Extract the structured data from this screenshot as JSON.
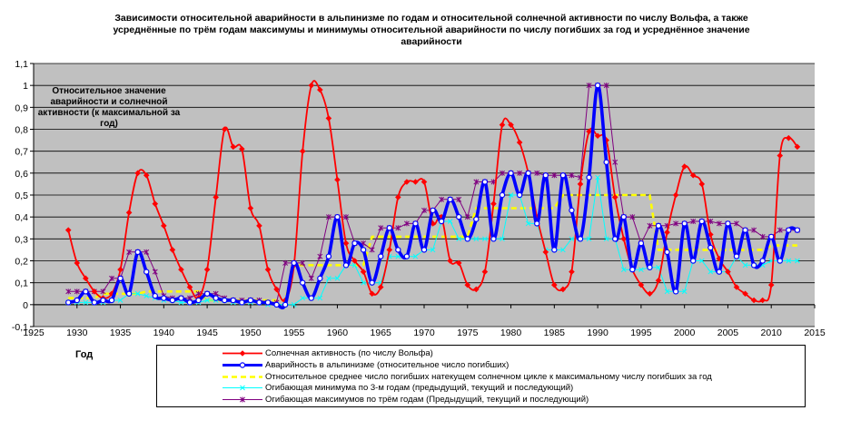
{
  "chart_data": {
    "type": "line",
    "title": "Зависимости относительной аварийности в альпинизме по годам и относительной солнечной активности по числу Вольфа, а также усреднённые по трём годам максимумы и минимумы относительной аварийности по числу погибших за год и усреднённое значение аварийности",
    "xlabel": "Год",
    "ylabel": "Относительное значение аварийности и солнечной активности (к максимальной за год)",
    "xlim": [
      1925,
      2015
    ],
    "ylim": [
      -0.1,
      1.1
    ],
    "x_ticks": [
      "1925",
      "1930",
      "1935",
      "1940",
      "1945",
      "1950",
      "1955",
      "1960",
      "1965",
      "1970",
      "1975",
      "1980",
      "1985",
      "1990",
      "1995",
      "2000",
      "2005",
      "2010",
      "2015"
    ],
    "y_ticks": [
      "-0,1",
      "0",
      "0,1",
      "0,2",
      "0,3",
      "0,4",
      "0,5",
      "0,6",
      "0,7",
      "0,8",
      "0,9",
      "1",
      "1,1"
    ],
    "grid": "horizontal",
    "legend_position": "bottom",
    "series": [
      {
        "name": "Солнечная активность (по числу Вольфа)",
        "color": "#ff0000",
        "marker": "diamond",
        "x": [
          1929,
          1930,
          1931,
          1932,
          1933,
          1934,
          1935,
          1936,
          1937,
          1938,
          1939,
          1940,
          1941,
          1942,
          1943,
          1944,
          1945,
          1946,
          1947,
          1948,
          1949,
          1950,
          1951,
          1952,
          1953,
          1954,
          1955,
          1956,
          1957,
          1958,
          1959,
          1960,
          1961,
          1962,
          1963,
          1964,
          1965,
          1966,
          1967,
          1968,
          1969,
          1970,
          1971,
          1972,
          1973,
          1974,
          1975,
          1976,
          1977,
          1978,
          1979,
          1980,
          1981,
          1982,
          1983,
          1984,
          1985,
          1986,
          1987,
          1988,
          1989,
          1990,
          1991,
          1992,
          1993,
          1994,
          1995,
          1996,
          1997,
          1998,
          1999,
          2000,
          2001,
          2002,
          2003,
          2004,
          2005,
          2006,
          2007,
          2008,
          2009,
          2010,
          2011,
          2012,
          2013
        ],
        "y": [
          0.34,
          0.19,
          0.12,
          0.06,
          0.03,
          0.05,
          0.16,
          0.42,
          0.6,
          0.59,
          0.46,
          0.36,
          0.25,
          0.16,
          0.08,
          0.03,
          0.16,
          0.49,
          0.8,
          0.72,
          0.71,
          0.44,
          0.36,
          0.16,
          0.07,
          0.02,
          0.18,
          0.7,
          1.0,
          0.98,
          0.85,
          0.57,
          0.28,
          0.2,
          0.15,
          0.05,
          0.08,
          0.25,
          0.49,
          0.56,
          0.56,
          0.56,
          0.37,
          0.4,
          0.2,
          0.19,
          0.09,
          0.07,
          0.15,
          0.46,
          0.82,
          0.82,
          0.74,
          0.6,
          0.4,
          0.24,
          0.09,
          0.07,
          0.15,
          0.55,
          0.79,
          0.77,
          0.75,
          0.49,
          0.3,
          0.16,
          0.09,
          0.05,
          0.11,
          0.33,
          0.5,
          0.63,
          0.59,
          0.55,
          0.32,
          0.21,
          0.15,
          0.08,
          0.05,
          0.02,
          0.02,
          0.09,
          0.68,
          0.76,
          0.72
        ]
      },
      {
        "name": "Аварийность в альпинизме (относительное число погибших)",
        "color": "#0000ff",
        "marker": "circle",
        "x": [
          1929,
          1930,
          1931,
          1932,
          1933,
          1934,
          1935,
          1936,
          1937,
          1938,
          1939,
          1940,
          1941,
          1942,
          1943,
          1944,
          1945,
          1946,
          1947,
          1948,
          1949,
          1950,
          1951,
          1952,
          1953,
          1954,
          1955,
          1956,
          1957,
          1958,
          1959,
          1960,
          1961,
          1962,
          1963,
          1964,
          1965,
          1966,
          1967,
          1968,
          1969,
          1970,
          1971,
          1972,
          1973,
          1974,
          1975,
          1976,
          1977,
          1978,
          1979,
          1980,
          1981,
          1982,
          1983,
          1984,
          1985,
          1986,
          1987,
          1988,
          1989,
          1990,
          1991,
          1992,
          1993,
          1994,
          1995,
          1996,
          1997,
          1998,
          1999,
          2000,
          2001,
          2002,
          2003,
          2004,
          2005,
          2006,
          2007,
          2008,
          2009,
          2010,
          2011,
          2012,
          2013
        ],
        "y": [
          0.01,
          0.02,
          0.06,
          0.01,
          0.02,
          0.02,
          0.12,
          0.05,
          0.24,
          0.15,
          0.04,
          0.03,
          0.02,
          0.03,
          0.01,
          0.02,
          0.05,
          0.03,
          0.02,
          0.02,
          0.01,
          0.02,
          0.01,
          0.01,
          0.0,
          0.0,
          0.19,
          0.1,
          0.03,
          0.12,
          0.22,
          0.4,
          0.18,
          0.28,
          0.25,
          0.1,
          0.22,
          0.35,
          0.25,
          0.22,
          0.37,
          0.25,
          0.43,
          0.38,
          0.48,
          0.4,
          0.3,
          0.39,
          0.56,
          0.3,
          0.5,
          0.6,
          0.5,
          0.6,
          0.37,
          0.59,
          0.25,
          0.59,
          0.43,
          0.3,
          0.58,
          1.0,
          0.65,
          0.3,
          0.4,
          0.16,
          0.28,
          0.17,
          0.36,
          0.24,
          0.06,
          0.37,
          0.2,
          0.38,
          0.26,
          0.15,
          0.37,
          0.22,
          0.34,
          0.18,
          0.2,
          0.31,
          0.2,
          0.34,
          0.34
        ]
      },
      {
        "name": "Относительное среднее число погибших натекущем солнечном цикле к максимальному числу погибших за год",
        "color": "#ffff00",
        "marker": "dash",
        "x": [
          1929,
          1930,
          1931,
          1932,
          1933,
          1934,
          1935,
          1936,
          1937,
          1938,
          1939,
          1940,
          1941,
          1942,
          1943,
          1944,
          1945,
          1946,
          1947,
          1948,
          1949,
          1950,
          1951,
          1952,
          1953,
          1954,
          1955,
          1956,
          1957,
          1958,
          1959,
          1960,
          1961,
          1962,
          1963,
          1964,
          1965,
          1966,
          1967,
          1968,
          1969,
          1970,
          1971,
          1972,
          1973,
          1974,
          1975,
          1976,
          1977,
          1978,
          1979,
          1980,
          1981,
          1982,
          1983,
          1984,
          1985,
          1986,
          1987,
          1988,
          1989,
          1990,
          1991,
          1992,
          1993,
          1994,
          1995,
          1996,
          1997,
          1998,
          1999,
          2000,
          2001,
          2002,
          2003,
          2004,
          2005,
          2006,
          2007,
          2008,
          2009,
          2010,
          2011,
          2012,
          2013
        ],
        "y": [
          0.03,
          0.03,
          0.03,
          0.03,
          0.05,
          0.05,
          0.05,
          0.05,
          0.05,
          0.06,
          0.06,
          0.06,
          0.06,
          0.06,
          0.06,
          0.06,
          0.02,
          0.02,
          0.02,
          0.02,
          0.02,
          0.02,
          0.02,
          0.02,
          0.02,
          0.02,
          0.18,
          0.18,
          0.18,
          0.18,
          0.18,
          0.18,
          0.18,
          0.18,
          0.18,
          0.31,
          0.31,
          0.31,
          0.31,
          0.31,
          0.31,
          0.31,
          0.31,
          0.31,
          0.31,
          0.31,
          0.31,
          0.44,
          0.44,
          0.44,
          0.44,
          0.44,
          0.44,
          0.44,
          0.44,
          0.44,
          0.44,
          0.5,
          0.5,
          0.5,
          0.5,
          0.5,
          0.5,
          0.5,
          0.5,
          0.5,
          0.5,
          0.5,
          0.25,
          0.25,
          0.25,
          0.25,
          0.25,
          0.25,
          0.25,
          0.25,
          0.25,
          0.25,
          0.25,
          0.25,
          0.25,
          0.27,
          0.27,
          0.27,
          0.27
        ]
      },
      {
        "name": "Огибающая минимума по 3-м годам (предыдущий, текущий и последующий)",
        "color": "#00ffff",
        "marker": "x",
        "x": [
          1929,
          1930,
          1931,
          1932,
          1933,
          1934,
          1935,
          1936,
          1937,
          1938,
          1939,
          1940,
          1941,
          1942,
          1943,
          1944,
          1945,
          1946,
          1947,
          1948,
          1949,
          1950,
          1951,
          1952,
          1953,
          1954,
          1955,
          1956,
          1957,
          1958,
          1959,
          1960,
          1961,
          1962,
          1963,
          1964,
          1965,
          1966,
          1967,
          1968,
          1969,
          1970,
          1971,
          1972,
          1973,
          1974,
          1975,
          1976,
          1977,
          1978,
          1979,
          1980,
          1981,
          1982,
          1983,
          1984,
          1985,
          1986,
          1987,
          1988,
          1989,
          1990,
          1991,
          1992,
          1993,
          1994,
          1995,
          1996,
          1997,
          1998,
          1999,
          2000,
          2001,
          2002,
          2003,
          2004,
          2005,
          2006,
          2007,
          2008,
          2009,
          2010,
          2011,
          2012,
          2013
        ],
        "y": [
          0.01,
          0.01,
          0.01,
          0.01,
          0.01,
          0.02,
          0.02,
          0.05,
          0.05,
          0.04,
          0.03,
          0.02,
          0.02,
          0.01,
          0.01,
          0.01,
          0.02,
          0.02,
          0.02,
          0.01,
          0.01,
          0.01,
          0.01,
          0.0,
          0.0,
          0.0,
          0.0,
          0.03,
          0.03,
          0.03,
          0.12,
          0.12,
          0.18,
          0.18,
          0.1,
          0.1,
          0.1,
          0.22,
          0.22,
          0.22,
          0.22,
          0.25,
          0.25,
          0.38,
          0.38,
          0.3,
          0.3,
          0.3,
          0.3,
          0.3,
          0.3,
          0.5,
          0.5,
          0.37,
          0.37,
          0.25,
          0.25,
          0.25,
          0.3,
          0.3,
          0.3,
          0.58,
          0.3,
          0.3,
          0.16,
          0.16,
          0.16,
          0.17,
          0.17,
          0.06,
          0.06,
          0.06,
          0.2,
          0.2,
          0.15,
          0.15,
          0.15,
          0.22,
          0.18,
          0.18,
          0.18,
          0.2,
          0.2,
          0.2,
          0.2
        ]
      },
      {
        "name": "Огибающая максимумов по трём годам (Предыдущий, текущий и последующий)",
        "color": "#800080",
        "marker": "asterisk",
        "x": [
          1929,
          1930,
          1931,
          1932,
          1933,
          1934,
          1935,
          1936,
          1937,
          1938,
          1939,
          1940,
          1941,
          1942,
          1943,
          1944,
          1945,
          1946,
          1947,
          1948,
          1949,
          1950,
          1951,
          1952,
          1953,
          1954,
          1955,
          1956,
          1957,
          1958,
          1959,
          1960,
          1961,
          1962,
          1963,
          1964,
          1965,
          1966,
          1967,
          1968,
          1969,
          1970,
          1971,
          1972,
          1973,
          1974,
          1975,
          1976,
          1977,
          1978,
          1979,
          1980,
          1981,
          1982,
          1983,
          1984,
          1985,
          1986,
          1987,
          1988,
          1989,
          1990,
          1991,
          1992,
          1993,
          1994,
          1995,
          1996,
          1997,
          1998,
          1999,
          2000,
          2001,
          2002,
          2003,
          2004,
          2005,
          2006,
          2007,
          2008,
          2009,
          2010,
          2011,
          2012,
          2013
        ],
        "y": [
          0.06,
          0.06,
          0.06,
          0.06,
          0.06,
          0.12,
          0.12,
          0.24,
          0.24,
          0.24,
          0.15,
          0.04,
          0.03,
          0.03,
          0.03,
          0.05,
          0.05,
          0.05,
          0.03,
          0.02,
          0.02,
          0.02,
          0.02,
          0.01,
          0.01,
          0.19,
          0.19,
          0.19,
          0.12,
          0.22,
          0.4,
          0.4,
          0.4,
          0.28,
          0.28,
          0.25,
          0.35,
          0.35,
          0.35,
          0.37,
          0.37,
          0.43,
          0.43,
          0.48,
          0.48,
          0.48,
          0.4,
          0.56,
          0.56,
          0.56,
          0.6,
          0.6,
          0.6,
          0.6,
          0.6,
          0.59,
          0.59,
          0.59,
          0.59,
          0.58,
          1.0,
          1.0,
          1.0,
          0.65,
          0.4,
          0.4,
          0.28,
          0.36,
          0.36,
          0.36,
          0.37,
          0.37,
          0.38,
          0.38,
          0.38,
          0.37,
          0.37,
          0.37,
          0.34,
          0.34,
          0.31,
          0.31,
          0.34,
          0.34,
          0.34
        ]
      }
    ]
  }
}
